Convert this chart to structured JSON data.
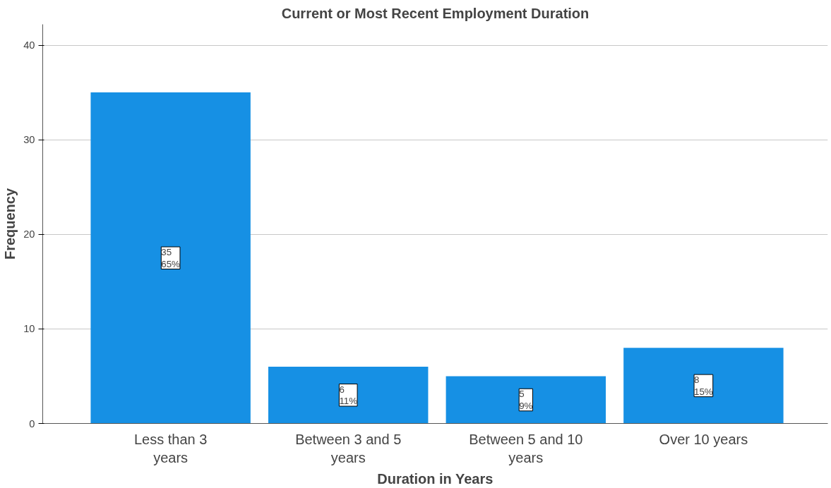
{
  "chart_data": {
    "type": "bar",
    "title": "Current or Most Recent Employment Duration",
    "xlabel": "Duration in Years",
    "ylabel": "Frequency",
    "categories": [
      "Less than 3 years",
      "Between 3 and 5 years",
      "Between 5 and 10 years",
      "Over 10 years"
    ],
    "values": [
      35,
      6,
      5,
      8
    ],
    "value_labels": [
      "35\n65%",
      "6\n11%",
      "5\n9%",
      "8\n15%"
    ],
    "color": "#1690e4",
    "ylim": [
      0,
      42.2
    ],
    "yticks": [
      0,
      10,
      20,
      30,
      40
    ],
    "grid": "y"
  }
}
